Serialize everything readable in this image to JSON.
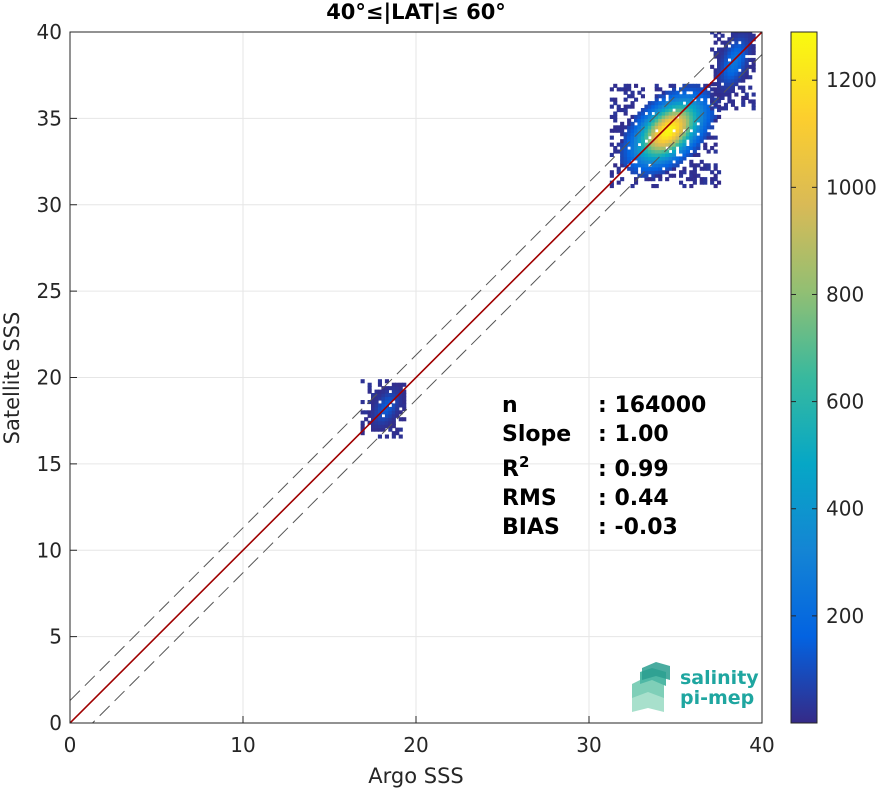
{
  "chart_data": {
    "type": "heatmap",
    "title": "40°≤|LAT|≤ 60°",
    "xlabel": "Argo SSS",
    "ylabel": "Satellite SSS",
    "xlim": [
      0,
      40
    ],
    "ylim": [
      0,
      40
    ],
    "xticks": [
      "0",
      "10",
      "20",
      "30",
      "40"
    ],
    "yticks": [
      "0",
      "5",
      "10",
      "15",
      "20",
      "25",
      "30",
      "35",
      "40"
    ],
    "grid": true,
    "reference_lines": [
      {
        "kind": "identity",
        "color": "#a00000",
        "offset": 0
      },
      {
        "kind": "dashed",
        "color": "#555555",
        "offset": 1.3
      },
      {
        "kind": "dashed",
        "color": "#555555",
        "offset": -1.3
      }
    ],
    "clusters": [
      {
        "x_center": 34.5,
        "y_center": 34.2,
        "peak_count": 1280,
        "x_range": [
          31.2,
          37.5
        ],
        "y_range": [
          31.0,
          37.0
        ]
      },
      {
        "x_center": 38.3,
        "y_center": 38.2,
        "peak_count": 250,
        "x_range": [
          37.0,
          39.6
        ],
        "y_range": [
          35.5,
          40.0
        ]
      },
      {
        "x_center": 18.2,
        "y_center": 18.2,
        "peak_count": 150,
        "x_range": [
          16.8,
          19.2
        ],
        "y_range": [
          16.5,
          19.8
        ]
      }
    ],
    "colorbar": {
      "range": [
        0,
        1290
      ],
      "ticks": [
        "200",
        "400",
        "600",
        "800",
        "1000",
        "1200"
      ],
      "colormap": "parula"
    },
    "stats": [
      {
        "label": "n",
        "value": ": 164000"
      },
      {
        "label": "Slope",
        "value": ": 1.00"
      },
      {
        "label": "R",
        "sup": "2",
        "value": ": 0.99"
      },
      {
        "label": "RMS",
        "value": ": 0.44"
      },
      {
        "label": "BIAS",
        "value": ": -0.03"
      }
    ]
  },
  "logo": {
    "line1": "salinity",
    "line2": "pi-mep"
  }
}
